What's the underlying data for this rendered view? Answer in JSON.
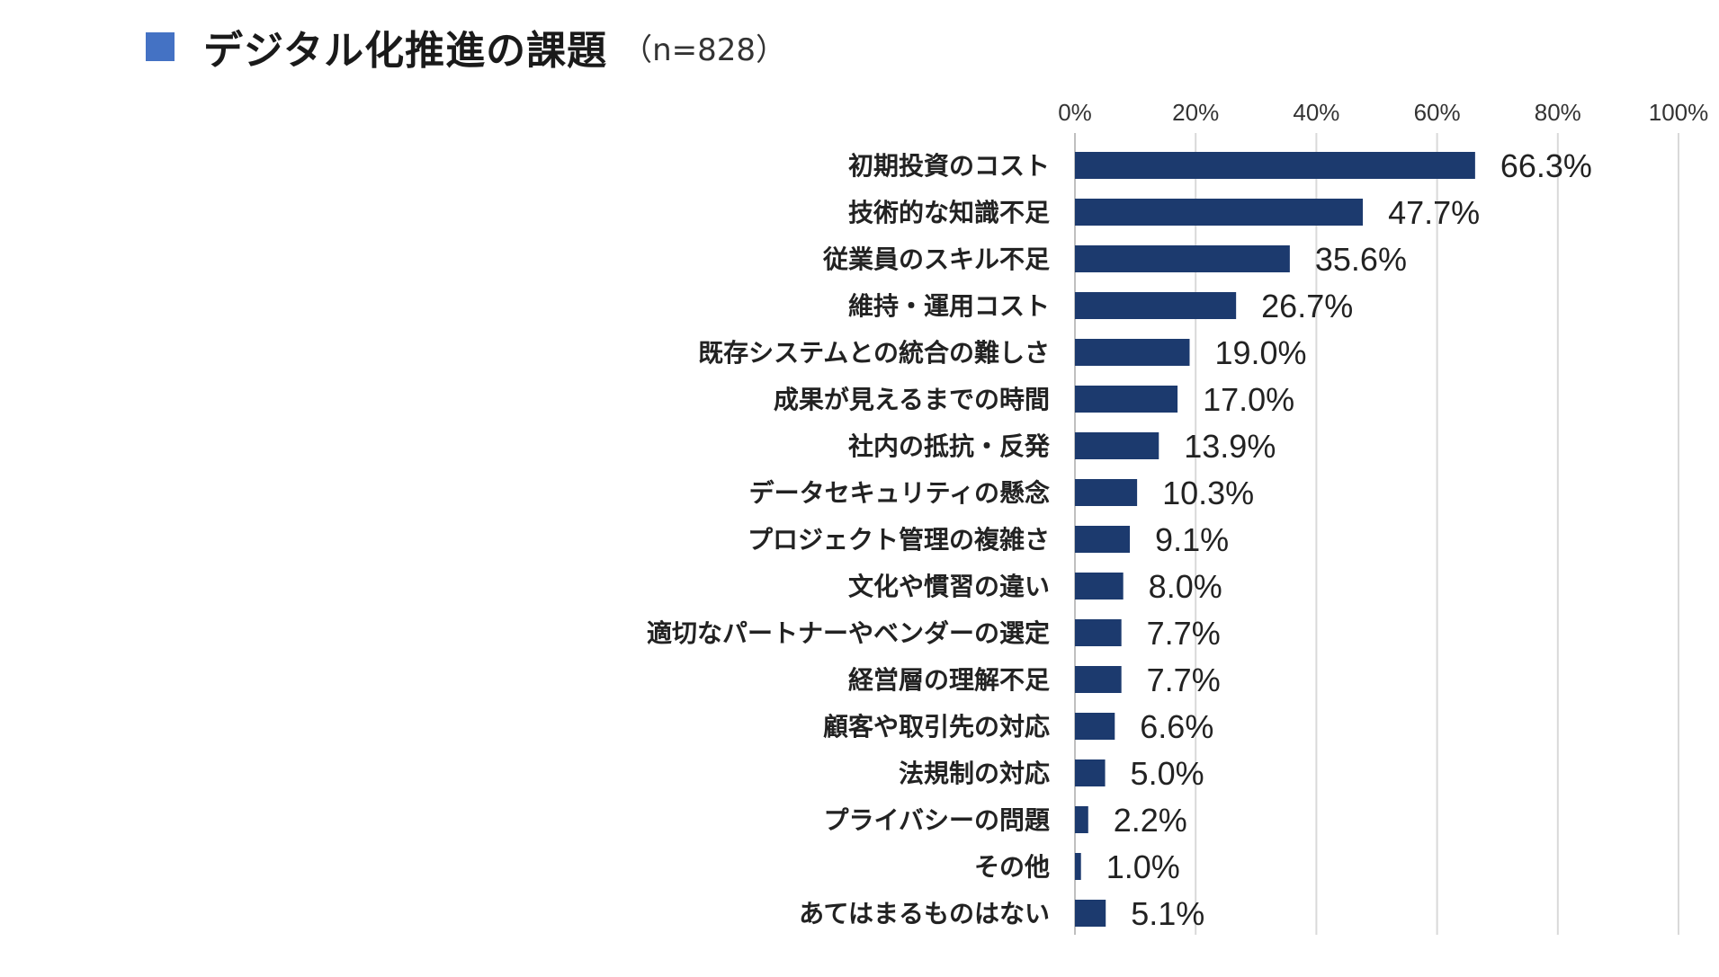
{
  "header": {
    "title": "デジタル化推進の課題",
    "sample": "（n=828）",
    "legend_color": "#4472C4"
  },
  "colors": {
    "bar": "#1C3A6E",
    "grid": "#D9D9D9"
  },
  "chart_data": {
    "type": "bar",
    "orientation": "horizontal",
    "title": "デジタル化推進の課題",
    "xlim": [
      0,
      100
    ],
    "ticks": [
      "0%",
      "20%",
      "40%",
      "60%",
      "80%",
      "100%"
    ],
    "tick_values": [
      0,
      20,
      40,
      60,
      80,
      100
    ],
    "categories": [
      "初期投資のコスト",
      "技術的な知識不足",
      "従業員のスキル不足",
      "維持・運用コスト",
      "既存システムとの統合の難しさ",
      "成果が見えるまでの時間",
      "社内の抵抗・反発",
      "データセキュリティの懸念",
      "プロジェクト管理の複雑さ",
      "文化や慣習の違い",
      "適切なパートナーやベンダーの選定",
      "経営層の理解不足",
      "顧客や取引先の対応",
      "法規制の対応",
      "プライバシーの問題",
      "その他",
      "あてはまるものはない"
    ],
    "values": [
      66.3,
      47.7,
      35.6,
      26.7,
      19.0,
      17.0,
      13.9,
      10.3,
      9.1,
      8.0,
      7.7,
      7.7,
      6.6,
      5.0,
      2.2,
      1.0,
      5.1
    ],
    "labels": [
      "66.3%",
      "47.7%",
      "35.6%",
      "26.7%",
      "19.0%",
      "17.0%",
      "13.9%",
      "10.3%",
      "9.1%",
      "8.0%",
      "7.7%",
      "7.7%",
      "6.6%",
      "5.0%",
      "2.2%",
      "1.0%",
      "5.1%"
    ]
  }
}
